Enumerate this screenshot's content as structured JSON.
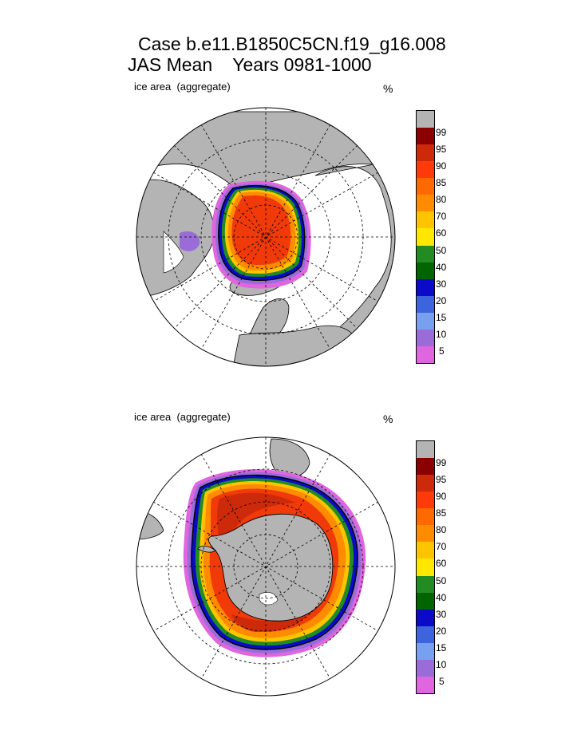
{
  "title": {
    "line1": "Case b.e11.B1850C5CN.f19_g16.008",
    "line2": "JAS Mean    Years 0981-1000"
  },
  "panels": [
    {
      "id": "arctic",
      "label": "ice area  (aggregate)",
      "unit": "%",
      "hemisphere": "north"
    },
    {
      "id": "antarctic",
      "label": "ice area  (aggregate)",
      "unit": "%",
      "hemisphere": "south"
    }
  ],
  "legend": {
    "levels": [
      "99",
      "95",
      "90",
      "85",
      "80",
      "70",
      "60",
      "50",
      "40",
      "30",
      "20",
      "15",
      "10",
      "5"
    ],
    "colors": [
      "#b4b4b4",
      "#8b0000",
      "#cd2a0b",
      "#ff3a0a",
      "#ff6a00",
      "#ff8c00",
      "#ffc400",
      "#ffe800",
      "#228b22",
      "#006400",
      "#0a0ac8",
      "#3c64dc",
      "#78a0f0",
      "#9a6cd8",
      "#e066e0"
    ]
  },
  "colors": {
    "land": "#b4b4b4",
    "ocean": "#ffffff",
    "ice_core": "#f03a0a",
    "ice_mid": "#cd2a0b",
    "ice_edge_orange": "#ff8c00",
    "ice_edge_yellow": "#ffc400",
    "ice_edge_green": "#228b22",
    "ice_edge_blue": "#0a0ac8",
    "ice_edge_purple": "#9a6cd8",
    "ice_edge_pink": "#e066e0"
  }
}
